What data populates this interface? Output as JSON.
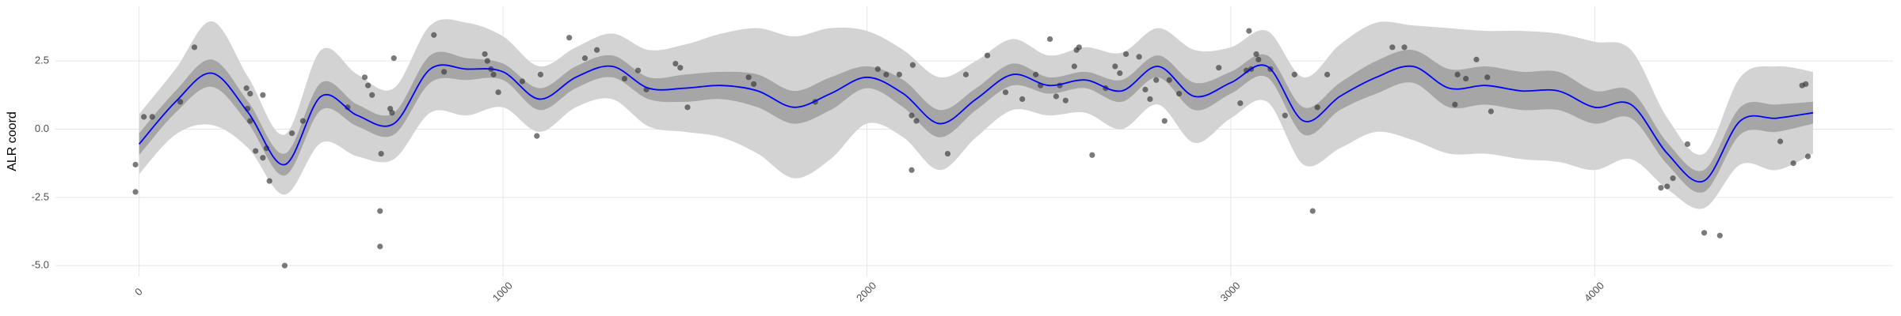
{
  "chart_data": {
    "type": "line",
    "y_label": "ALR coord",
    "grid": true,
    "xlim": [
      -230,
      4820
    ],
    "ylim": [
      -5.4,
      4.5
    ],
    "xticks": [
      0,
      1000,
      2000,
      3000,
      4000
    ],
    "yticks": [
      {
        "value": -5.0,
        "label": "-5.0"
      },
      -2.5,
      {
        "value": 0.0,
        "label": "0.0"
      },
      2.5
    ],
    "x": [
      0,
      100,
      200,
      300,
      400,
      500,
      600,
      700,
      800,
      900,
      1000,
      1100,
      1200,
      1300,
      1400,
      1500,
      1600,
      1700,
      1800,
      1900,
      2000,
      2100,
      2200,
      2300,
      2400,
      2500,
      2600,
      2700,
      2800,
      2900,
      3000,
      3100,
      3200,
      3300,
      3400,
      3500,
      3600,
      3700,
      3800,
      3900,
      4000,
      4100,
      4200,
      4300,
      4400,
      4500,
      4600
    ],
    "bands": [
      {
        "color": "#d3d3d3",
        "lower": [
          -1.65,
          -0.2,
          0.15,
          -0.7,
          -2.4,
          -0.5,
          -1.0,
          -1.1,
          0.6,
          0.5,
          0.8,
          -0.1,
          0.8,
          1.1,
          0.1,
          -0.1,
          -0.3,
          -0.9,
          -1.8,
          -1.1,
          0.2,
          -0.3,
          -1.5,
          -0.3,
          0.7,
          0.5,
          0.6,
          0.0,
          0.9,
          -0.5,
          0.4,
          1.0,
          -1.3,
          -0.7,
          -0.1,
          -0.4,
          -0.9,
          -0.9,
          -1.1,
          -1.2,
          -1.5,
          -1.1,
          -2.2,
          -2.9,
          -1.3,
          -1.5,
          -0.9
        ],
        "upper": [
          0.55,
          2.2,
          3.95,
          1.9,
          -0.2,
          2.9,
          2.0,
          1.5,
          3.8,
          3.9,
          3.4,
          2.3,
          3.0,
          3.5,
          2.9,
          3.1,
          3.5,
          3.7,
          3.4,
          3.7,
          3.6,
          2.9,
          1.9,
          2.5,
          3.3,
          2.7,
          3.0,
          2.8,
          3.7,
          2.9,
          3.0,
          3.6,
          1.9,
          3.1,
          3.9,
          3.8,
          3.7,
          3.6,
          3.6,
          3.5,
          3.2,
          2.9,
          0.4,
          -0.9,
          1.9,
          2.3,
          2.1
        ]
      },
      {
        "color": "#a6a6a6",
        "lower": [
          -0.95,
          0.6,
          1.55,
          0.2,
          -1.7,
          0.7,
          0.1,
          -0.2,
          1.7,
          1.8,
          1.8,
          0.7,
          1.5,
          1.9,
          1.1,
          1.0,
          1.1,
          0.8,
          0.2,
          0.7,
          1.5,
          0.8,
          -0.3,
          0.7,
          1.6,
          1.3,
          1.5,
          1.0,
          1.9,
          0.7,
          1.3,
          1.9,
          -0.2,
          0.7,
          1.3,
          1.7,
          0.8,
          0.9,
          0.7,
          0.7,
          0.2,
          0.4,
          -1.3,
          -2.3,
          -0.2,
          -0.1,
          0.2
        ],
        "upper": [
          -0.15,
          1.4,
          2.55,
          1.0,
          -0.9,
          1.7,
          0.9,
          0.6,
          2.7,
          2.6,
          2.4,
          1.5,
          2.3,
          2.7,
          1.9,
          2.0,
          2.1,
          2.0,
          1.4,
          1.9,
          2.3,
          1.8,
          0.7,
          1.5,
          2.4,
          1.9,
          2.1,
          1.8,
          2.7,
          1.7,
          2.1,
          2.7,
          0.8,
          1.7,
          2.5,
          2.9,
          2.2,
          2.3,
          2.1,
          2.1,
          1.4,
          1.4,
          -0.5,
          -1.5,
          0.8,
          0.9,
          1.0
        ]
      }
    ],
    "series": [
      {
        "color": "#0000ff",
        "values": [
          -0.55,
          1.0,
          2.05,
          0.6,
          -1.3,
          1.2,
          0.5,
          0.2,
          2.2,
          2.2,
          2.1,
          1.1,
          1.9,
          2.3,
          1.5,
          1.5,
          1.6,
          1.4,
          0.8,
          1.3,
          1.9,
          1.3,
          0.2,
          1.1,
          2.0,
          1.6,
          1.8,
          1.4,
          2.3,
          1.2,
          1.7,
          2.3,
          0.3,
          1.2,
          1.9,
          2.3,
          1.5,
          1.6,
          1.4,
          1.4,
          0.8,
          0.9,
          -0.9,
          -1.9,
          0.3,
          0.4,
          0.6
        ]
      }
    ],
    "points": {
      "color": "#333333",
      "x": [
        -10,
        -10,
        13,
        36,
        113,
        152,
        295,
        305,
        298,
        305,
        320,
        340,
        350,
        358,
        400,
        420,
        450,
        340,
        573,
        620,
        629,
        640,
        665,
        662,
        662,
        690,
        695,
        700,
        810,
        838,
        950,
        957,
        967,
        974,
        987,
        1053,
        1093,
        1103,
        1182,
        1225,
        1258,
        1334,
        1371,
        1394,
        1474,
        1487,
        1507,
        1675,
        1689,
        1858,
        2030,
        2053,
        2089,
        2123,
        2126,
        2123,
        2136,
        2222,
        2272,
        2331,
        2381,
        2427,
        2464,
        2477,
        2503,
        2520,
        2530,
        2546,
        2570,
        2576,
        2583,
        2619,
        2656,
        2682,
        2695,
        2712,
        2748,
        2765,
        2778,
        2795,
        2818,
        2831,
        2858,
        2967,
        3026,
        3043,
        3050,
        3056,
        3070,
        3076,
        3109,
        3149,
        3175,
        3225,
        3238,
        3265,
        3444,
        3477,
        3616,
        3623,
        3646,
        3675,
        3705,
        3715,
        4182,
        4199,
        4215,
        4255,
        4301,
        4344,
        4510,
        4546,
        4570,
        4580,
        4586
      ],
      "values": [
        -2.3,
        -1.3,
        0.45,
        0.45,
        1.0,
        3.0,
        1.5,
        1.3,
        0.75,
        0.3,
        -0.8,
        -1.05,
        -0.7,
        -1.9,
        -5.0,
        -0.15,
        0.3,
        1.25,
        0.8,
        1.9,
        1.6,
        1.25,
        -0.9,
        -3.0,
        -4.3,
        0.75,
        0.6,
        2.6,
        3.45,
        2.1,
        2.75,
        2.5,
        2.2,
        2.0,
        1.35,
        1.75,
        -0.25,
        2.0,
        3.35,
        2.6,
        2.9,
        1.85,
        2.15,
        1.45,
        2.4,
        2.25,
        0.8,
        1.9,
        1.65,
        1.0,
        2.2,
        2.0,
        2.0,
        0.5,
        2.35,
        -1.5,
        0.3,
        -0.9,
        2.0,
        2.7,
        1.35,
        1.1,
        2.0,
        1.6,
        3.3,
        1.2,
        1.6,
        1.05,
        2.3,
        2.9,
        3.0,
        -0.95,
        1.5,
        2.3,
        2.05,
        2.75,
        2.65,
        1.45,
        1.1,
        1.8,
        0.3,
        1.8,
        1.3,
        2.25,
        0.95,
        2.15,
        3.6,
        2.2,
        2.75,
        2.55,
        2.2,
        0.5,
        2.0,
        -3.0,
        0.8,
        2.0,
        3.0,
        3.0,
        0.9,
        2.0,
        1.85,
        2.55,
        1.9,
        0.65,
        -2.15,
        -2.1,
        -1.8,
        -0.55,
        -3.8,
        -3.9,
        -0.45,
        -1.25,
        1.6,
        1.65,
        -1.0
      ]
    }
  }
}
